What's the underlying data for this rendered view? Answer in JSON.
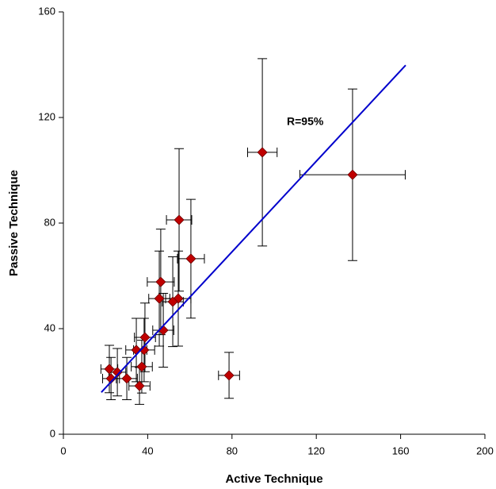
{
  "chart_data": {
    "type": "scatter",
    "x_label": "Active Technique",
    "y_label": "Passive Technique",
    "annotation": "R=95%",
    "xlim": [
      0,
      200
    ],
    "ylim": [
      0,
      160
    ],
    "xticks": [
      0,
      40,
      80,
      120,
      160,
      200
    ],
    "yticks": [
      0,
      40,
      80,
      120,
      160
    ],
    "series": [
      {
        "color": "#c00000",
        "x": [
          94.4,
          137.2,
          54.9,
          60.5,
          46.2,
          45.5,
          54.5,
          51.9,
          47.4,
          38.7,
          34.6,
          38.3,
          37.2,
          36.1,
          78.6,
          21.8,
          25.6,
          22.6,
          30.1
        ],
        "values": [
          106.8,
          98.3,
          81.2,
          66.5,
          57.7,
          51.4,
          51.4,
          50.2,
          39.4,
          36.7,
          31.9,
          31.9,
          25.6,
          18.3,
          22.3,
          24.7,
          23.5,
          21.1,
          21.1
        ],
        "xerr": [
          7,
          25,
          6,
          6.4,
          6.4,
          5,
          6,
          5,
          5,
          5,
          5,
          5,
          5,
          5,
          5,
          4,
          4,
          4,
          5
        ],
        "yerr": [
          35.5,
          32.5,
          27,
          22.5,
          20,
          18,
          18,
          17,
          14,
          13,
          12,
          12,
          10,
          7,
          8.7,
          9,
          9,
          8,
          8
        ]
      }
    ],
    "fit": {
      "color": "#0000cc",
      "x": [
        18,
        162.4
      ],
      "y": [
        15.9,
        139.8
      ]
    }
  }
}
